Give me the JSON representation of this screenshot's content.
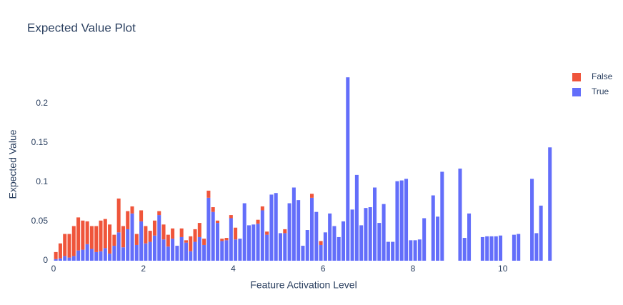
{
  "chart_data": {
    "type": "stacked_bar",
    "title": "Expected Value Plot",
    "x_label": "Feature Activation Level",
    "y_label": "Expected Value",
    "x": [
      0.05,
      0.15,
      0.25,
      0.35,
      0.45,
      0.55,
      0.65,
      0.75,
      0.85,
      0.95,
      1.05,
      1.15,
      1.25,
      1.35,
      1.45,
      1.55,
      1.65,
      1.75,
      1.85,
      1.95,
      2.05,
      2.15,
      2.25,
      2.35,
      2.45,
      2.55,
      2.65,
      2.75,
      2.85,
      2.95,
      3.05,
      3.15,
      3.25,
      3.35,
      3.45,
      3.55,
      3.65,
      3.75,
      3.85,
      3.95,
      4.05,
      4.15,
      4.25,
      4.35,
      4.45,
      4.55,
      4.65,
      4.75,
      4.85,
      4.95,
      5.05,
      5.15,
      5.25,
      5.35,
      5.45,
      5.55,
      5.65,
      5.75,
      5.85,
      5.95,
      6.05,
      6.15,
      6.25,
      6.35,
      6.45,
      6.55,
      6.65,
      6.75,
      6.85,
      6.95,
      7.05,
      7.15,
      7.25,
      7.35,
      7.45,
      7.55,
      7.65,
      7.75,
      7.85,
      7.95,
      8.05,
      8.15,
      8.25,
      8.45,
      8.55,
      8.65,
      9.05,
      9.15,
      9.25,
      9.55,
      9.65,
      9.75,
      9.85,
      9.95,
      10.25,
      10.35,
      10.65,
      10.75,
      10.85,
      11.05
    ],
    "series": [
      {
        "name": "False",
        "color": "#EF553B",
        "values": [
          0.009,
          0.019,
          0.028,
          0.03,
          0.038,
          0.042,
          0.037,
          0.029,
          0.029,
          0.033,
          0.039,
          0.037,
          0.037,
          0.014,
          0.043,
          0.027,
          0.023,
          0.009,
          0.014,
          0.014,
          0.022,
          0.014,
          0.019,
          0.005,
          0.019,
          0.015,
          0.013,
          null,
          0.011,
          0.003,
          0.019,
          0.016,
          0.018,
          0.008,
          0.009,
          0.006,
          0.003,
          0.003,
          0.003,
          0.004,
          0.015,
          null,
          null,
          null,
          null,
          0.005,
          0.005,
          0.004,
          null,
          null,
          null,
          0.005,
          null,
          null,
          null,
          null,
          null,
          0.005,
          null,
          0.005,
          null,
          null,
          null,
          null,
          null,
          null,
          null,
          null,
          null,
          null,
          null,
          null,
          null,
          null,
          null,
          null,
          null,
          null,
          null,
          null,
          null,
          null,
          null,
          null,
          null,
          null,
          null,
          null,
          null,
          null,
          null,
          null,
          null,
          null,
          null,
          null,
          null,
          null,
          null,
          null
        ]
      },
      {
        "name": "True",
        "color": "#636EFA",
        "values": [
          0.002,
          0.003,
          0.006,
          0.004,
          0.006,
          0.013,
          0.014,
          0.021,
          0.015,
          0.011,
          0.012,
          0.016,
          0.009,
          0.019,
          0.036,
          0.017,
          0.04,
          0.06,
          0.02,
          0.05,
          0.022,
          0.024,
          0.032,
          0.058,
          0.027,
          0.018,
          0.028,
          0.019,
          0.03,
          0.023,
          0.012,
          0.024,
          0.03,
          0.02,
          0.08,
          0.062,
          0.048,
          0.025,
          0.026,
          0.054,
          0.027,
          0.028,
          0.073,
          0.045,
          0.046,
          0.047,
          0.064,
          0.033,
          0.084,
          0.086,
          0.035,
          0.035,
          0.073,
          0.093,
          0.077,
          0.019,
          0.039,
          0.08,
          0.062,
          0.02,
          0.036,
          0.06,
          0.044,
          0.03,
          0.05,
          0.233,
          0.065,
          0.109,
          0.045,
          0.067,
          0.068,
          0.093,
          0.048,
          0.072,
          0.024,
          0.024,
          0.101,
          0.102,
          0.104,
          0.026,
          0.026,
          0.027,
          0.054,
          0.083,
          0.056,
          0.113,
          0.117,
          0.029,
          0.06,
          0.03,
          0.031,
          0.031,
          0.031,
          0.032,
          0.033,
          0.034,
          0.104,
          0.035,
          0.07,
          0.144
        ]
      }
    ],
    "xlim": [
      0,
      11.15
    ],
    "xticks": [
      0,
      2,
      4,
      6,
      8,
      10
    ],
    "ylim": [
      0,
      0.245
    ],
    "yticks": [
      0,
      0.05,
      0.1,
      0.15,
      0.2
    ],
    "grid": false,
    "legend": "right"
  }
}
